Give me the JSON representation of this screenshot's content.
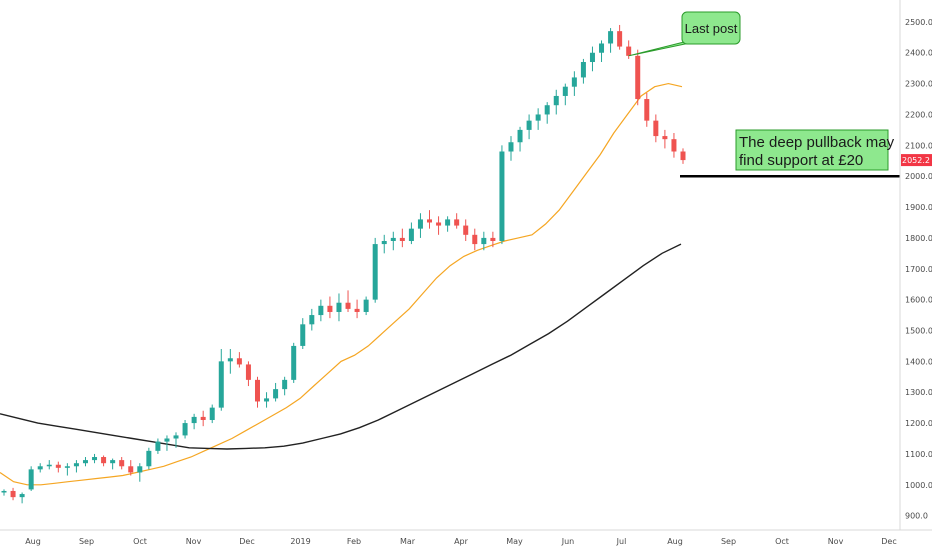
{
  "chart_data": {
    "type": "candlestick",
    "title": "",
    "price_axis": {
      "ticks": [
        "2500.0",
        "2400.0",
        "2300.0",
        "2200.0",
        "2100.0",
        "2000.0",
        "1900.0",
        "1800.0",
        "1700.0",
        "1600.0",
        "1500.0",
        "1400.0",
        "1300.0",
        "1200.0",
        "1100.0",
        "1000.0",
        "900.0"
      ],
      "range": [
        860,
        2545
      ],
      "current_price_label": "2052.2",
      "current_price": 2052.2,
      "current_price_color": "#f23645"
    },
    "time_axis": {
      "labels": [
        "Aug",
        "Sep",
        "Oct",
        "Nov",
        "Dec",
        "2019",
        "Feb",
        "Mar",
        "Apr",
        "May",
        "Jun",
        "Jul",
        "Aug",
        "Sep",
        "Oct",
        "Nov",
        "Dec"
      ],
      "range_months": [
        0,
        17.1
      ]
    },
    "candles_ohlc_approx": [
      [
        975,
        985,
        965,
        980
      ],
      [
        980,
        990,
        950,
        960
      ],
      [
        960,
        975,
        940,
        970
      ],
      [
        985,
        1060,
        980,
        1050
      ],
      [
        1050,
        1070,
        1040,
        1060
      ],
      [
        1060,
        1080,
        1050,
        1065
      ],
      [
        1065,
        1075,
        1040,
        1055
      ],
      [
        1055,
        1070,
        1030,
        1060
      ],
      [
        1060,
        1080,
        1040,
        1070
      ],
      [
        1070,
        1090,
        1060,
        1080
      ],
      [
        1080,
        1100,
        1070,
        1090
      ],
      [
        1090,
        1095,
        1060,
        1070
      ],
      [
        1070,
        1085,
        1050,
        1080
      ],
      [
        1080,
        1090,
        1050,
        1060
      ],
      [
        1060,
        1080,
        1030,
        1040
      ],
      [
        1040,
        1070,
        1010,
        1060
      ],
      [
        1060,
        1120,
        1050,
        1110
      ],
      [
        1110,
        1150,
        1100,
        1140
      ],
      [
        1140,
        1160,
        1110,
        1150
      ],
      [
        1150,
        1170,
        1120,
        1160
      ],
      [
        1160,
        1210,
        1150,
        1200
      ],
      [
        1200,
        1230,
        1180,
        1220
      ],
      [
        1220,
        1240,
        1190,
        1210
      ],
      [
        1210,
        1260,
        1200,
        1250
      ],
      [
        1250,
        1440,
        1240,
        1400
      ],
      [
        1400,
        1440,
        1360,
        1410
      ],
      [
        1410,
        1430,
        1380,
        1390
      ],
      [
        1390,
        1400,
        1320,
        1340
      ],
      [
        1340,
        1350,
        1250,
        1270
      ],
      [
        1270,
        1300,
        1250,
        1280
      ],
      [
        1280,
        1330,
        1270,
        1310
      ],
      [
        1310,
        1350,
        1290,
        1340
      ],
      [
        1340,
        1460,
        1330,
        1450
      ],
      [
        1450,
        1540,
        1440,
        1520
      ],
      [
        1520,
        1570,
        1500,
        1550
      ],
      [
        1550,
        1600,
        1530,
        1580
      ],
      [
        1580,
        1610,
        1540,
        1560
      ],
      [
        1560,
        1620,
        1530,
        1590
      ],
      [
        1590,
        1630,
        1560,
        1570
      ],
      [
        1570,
        1600,
        1540,
        1560
      ],
      [
        1560,
        1610,
        1550,
        1600
      ],
      [
        1600,
        1800,
        1590,
        1780
      ],
      [
        1780,
        1810,
        1750,
        1790
      ],
      [
        1790,
        1820,
        1760,
        1800
      ],
      [
        1800,
        1830,
        1770,
        1790
      ],
      [
        1790,
        1850,
        1780,
        1830
      ],
      [
        1830,
        1880,
        1800,
        1860
      ],
      [
        1860,
        1890,
        1830,
        1850
      ],
      [
        1850,
        1870,
        1810,
        1840
      ],
      [
        1840,
        1870,
        1820,
        1860
      ],
      [
        1860,
        1880,
        1830,
        1840
      ],
      [
        1840,
        1860,
        1790,
        1810
      ],
      [
        1810,
        1830,
        1760,
        1780
      ],
      [
        1780,
        1820,
        1760,
        1800
      ],
      [
        1800,
        1820,
        1770,
        1790
      ],
      [
        1790,
        2100,
        1780,
        2080
      ],
      [
        2080,
        2130,
        2050,
        2110
      ],
      [
        2110,
        2160,
        2080,
        2150
      ],
      [
        2150,
        2200,
        2120,
        2180
      ],
      [
        2180,
        2220,
        2150,
        2200
      ],
      [
        2200,
        2240,
        2170,
        2230
      ],
      [
        2230,
        2280,
        2200,
        2260
      ],
      [
        2260,
        2300,
        2230,
        2290
      ],
      [
        2290,
        2340,
        2260,
        2320
      ],
      [
        2320,
        2380,
        2300,
        2370
      ],
      [
        2370,
        2420,
        2340,
        2400
      ],
      [
        2400,
        2440,
        2370,
        2430
      ],
      [
        2430,
        2480,
        2400,
        2470
      ],
      [
        2470,
        2490,
        2410,
        2420
      ],
      [
        2420,
        2440,
        2380,
        2390
      ],
      [
        2390,
        2410,
        2230,
        2250
      ],
      [
        2250,
        2270,
        2160,
        2180
      ],
      [
        2180,
        2200,
        2110,
        2130
      ],
      [
        2130,
        2150,
        2090,
        2120
      ],
      [
        2120,
        2140,
        2060,
        2080
      ],
      [
        2080,
        2090,
        2040,
        2052.2
      ]
    ],
    "series": [
      {
        "name": "",
        "color": "#f5a623",
        "values": [
          1040,
          1010,
          1000,
          1000,
          1005,
          1010,
          1015,
          1020,
          1025,
          1030,
          1040,
          1050,
          1060,
          1075,
          1090,
          1110,
          1130,
          1150,
          1175,
          1200,
          1225,
          1250,
          1280,
          1320,
          1360,
          1400,
          1420,
          1450,
          1490,
          1530,
          1570,
          1620,
          1670,
          1710,
          1740,
          1760,
          1775,
          1790,
          1800,
          1810,
          1845,
          1890,
          1950,
          2010,
          2070,
          2140,
          2200,
          2260,
          2290,
          2300,
          2290
        ]
      },
      {
        "name": "",
        "color": "#222222",
        "values": [
          1230,
          1215,
          1200,
          1190,
          1180,
          1170,
          1160,
          1150,
          1140,
          1130,
          1120,
          1118,
          1116,
          1118,
          1120,
          1125,
          1135,
          1150,
          1165,
          1185,
          1210,
          1240,
          1270,
          1300,
          1330,
          1360,
          1390,
          1420,
          1455,
          1490,
          1530,
          1575,
          1620,
          1665,
          1710,
          1750,
          1780
        ]
      }
    ],
    "support_level": 2000,
    "annotations": [
      {
        "text": "Last post",
        "bg": "#8ee88e"
      },
      {
        "text_line1": "The deep pullback may",
        "text_line2": "find support at £20",
        "bg": "#8ee88e"
      }
    ],
    "colors": {
      "up": "#26a69a",
      "down": "#ef5350",
      "axis_border": "#d9d9d9"
    },
    "grid": false
  }
}
